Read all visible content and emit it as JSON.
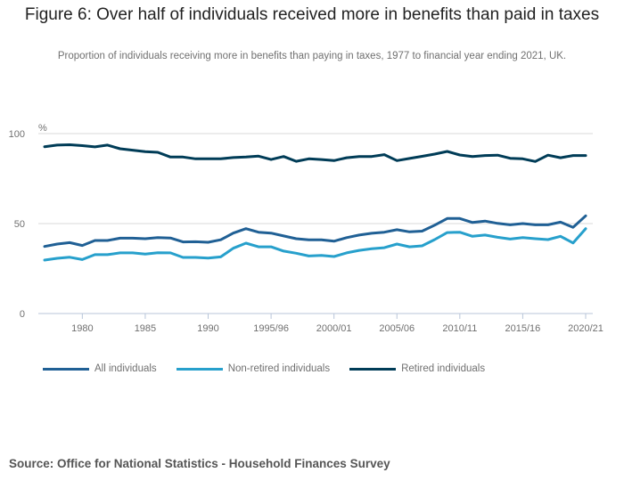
{
  "title": "Figure 6: Over half of individuals received more in benefits than paid in taxes",
  "subtitle": "Proportion of individuals receiving more in benefits than paying in taxes, 1977 to financial year ending 2021, UK.",
  "source": "Source: Office for National Statistics - Household Finances Survey",
  "chart_data": {
    "type": "line",
    "title": "Figure 6: Over half of individuals received more in benefits than paid in taxes",
    "subtitle": "Proportion of individuals receiving more in benefits than paying in taxes, 1977 to financial year ending 2021, UK.",
    "xlabel": "",
    "ylabel": "%",
    "ylim": [
      0,
      100
    ],
    "yticks": [
      0,
      50,
      100
    ],
    "grid": true,
    "legend_position": "bottom-left",
    "x": [
      "1977",
      "1978",
      "1979",
      "1980",
      "1981",
      "1982",
      "1983",
      "1984",
      "1985",
      "1986",
      "1987",
      "1988",
      "1989",
      "1990",
      "1991",
      "1992",
      "1993",
      "1994/95",
      "1995/96",
      "1996/97",
      "1997/98",
      "1998/99",
      "1999/00",
      "2000/01",
      "2001/02",
      "2002/03",
      "2003/04",
      "2004/05",
      "2005/06",
      "2006/07",
      "2007/08",
      "2008/09",
      "2009/10",
      "2010/11",
      "2011/12",
      "2012/13",
      "2013/14",
      "2014/15",
      "2015/16",
      "2016/17",
      "2017/18",
      "2018/19",
      "2019/20",
      "2020/21"
    ],
    "xtick_labels": [
      {
        "index": 3,
        "label": "1980"
      },
      {
        "index": 8,
        "label": "1985"
      },
      {
        "index": 13,
        "label": "1990"
      },
      {
        "index": 18,
        "label": "1995/96"
      },
      {
        "index": 23,
        "label": "2000/01"
      },
      {
        "index": 28,
        "label": "2005/06"
      },
      {
        "index": 33,
        "label": "2010/11"
      },
      {
        "index": 38,
        "label": "2015/16"
      },
      {
        "index": 43,
        "label": "2020/21"
      }
    ],
    "series": [
      {
        "name": "All individuals",
        "color": "#206095",
        "values": [
          37.3,
          38.6,
          39.4,
          37.8,
          40.6,
          40.6,
          41.9,
          41.9,
          41.6,
          42.2,
          42.0,
          39.8,
          39.9,
          39.6,
          41.0,
          44.7,
          47.2,
          45.2,
          44.7,
          43.1,
          41.6,
          41.0,
          41.0,
          40.2,
          42.2,
          43.6,
          44.6,
          45.2,
          46.6,
          45.4,
          45.8,
          49.1,
          52.8,
          52.8,
          50.6,
          51.4,
          50.1,
          49.3,
          50.0,
          49.3,
          49.3,
          50.8,
          47.9,
          54.3
        ]
      },
      {
        "name": "Non-retired individuals",
        "color": "#27a0cc",
        "values": [
          29.7,
          30.7,
          31.3,
          30.0,
          32.7,
          32.7,
          33.7,
          33.7,
          33.0,
          33.8,
          33.7,
          31.2,
          31.2,
          30.8,
          31.5,
          36.3,
          39.1,
          37.1,
          37.1,
          34.7,
          33.5,
          32.0,
          32.3,
          31.7,
          33.7,
          35.1,
          36.0,
          36.6,
          38.6,
          37.1,
          37.6,
          41.1,
          45.0,
          45.2,
          42.9,
          43.6,
          42.4,
          41.4,
          42.2,
          41.6,
          41.1,
          42.9,
          39.2,
          47.2
        ]
      },
      {
        "name": "Retired individuals",
        "color": "#003c57",
        "values": [
          92.7,
          93.6,
          93.8,
          93.3,
          92.6,
          93.6,
          91.6,
          90.8,
          90.0,
          89.6,
          87.0,
          87.0,
          86.0,
          86.0,
          86.0,
          86.7,
          87.0,
          87.5,
          85.6,
          87.3,
          84.6,
          86.0,
          85.6,
          85.0,
          86.6,
          87.3,
          87.3,
          88.3,
          85.0,
          86.2,
          87.4,
          88.6,
          90.1,
          88.1,
          87.3,
          87.8,
          88.0,
          86.3,
          86.0,
          84.5,
          88.0,
          86.6,
          87.8,
          87.8
        ]
      }
    ]
  }
}
